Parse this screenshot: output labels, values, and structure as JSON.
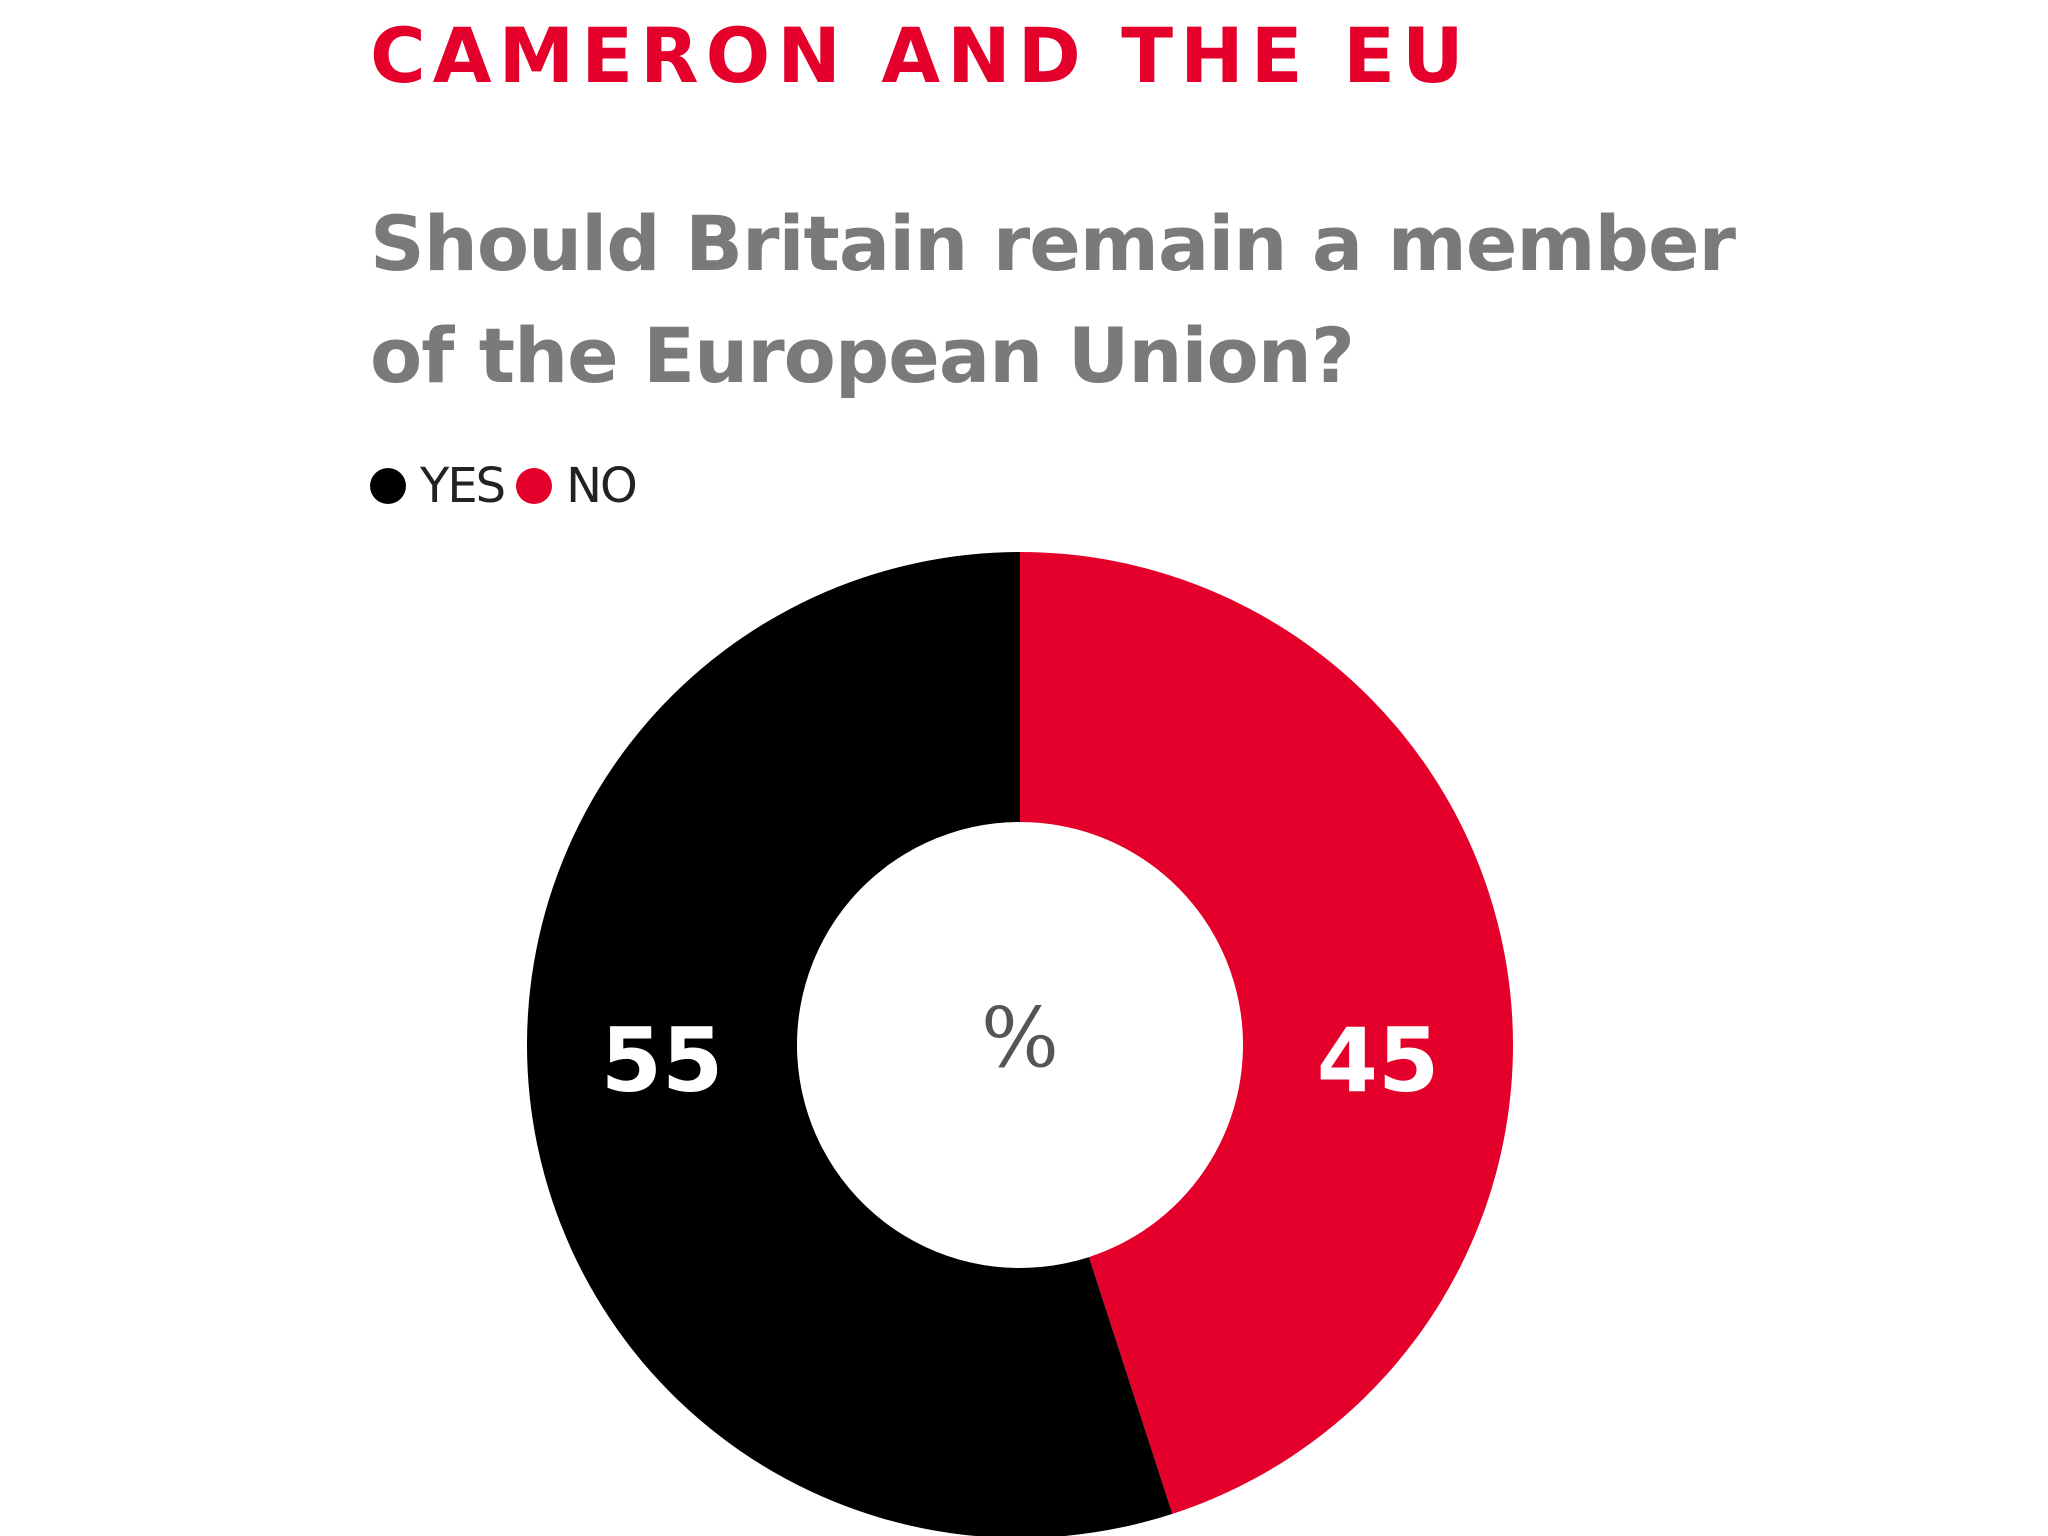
{
  "kicker": "CAMERON AND THE EU",
  "colors": {
    "accent": "#e4002b",
    "headline": "#7a7a7a",
    "yes": "#000000",
    "no": "#e4002b",
    "legend_text": "#222222"
  },
  "chart_data": {
    "type": "pie",
    "title": "Should Britain remain a member of the European Union?",
    "center_label": "%",
    "legend_placement": "top-left",
    "slices": [
      {
        "label": "YES",
        "value": 55,
        "color": "#000000"
      },
      {
        "label": "NO",
        "value": 45,
        "color": "#e4002b"
      }
    ]
  }
}
